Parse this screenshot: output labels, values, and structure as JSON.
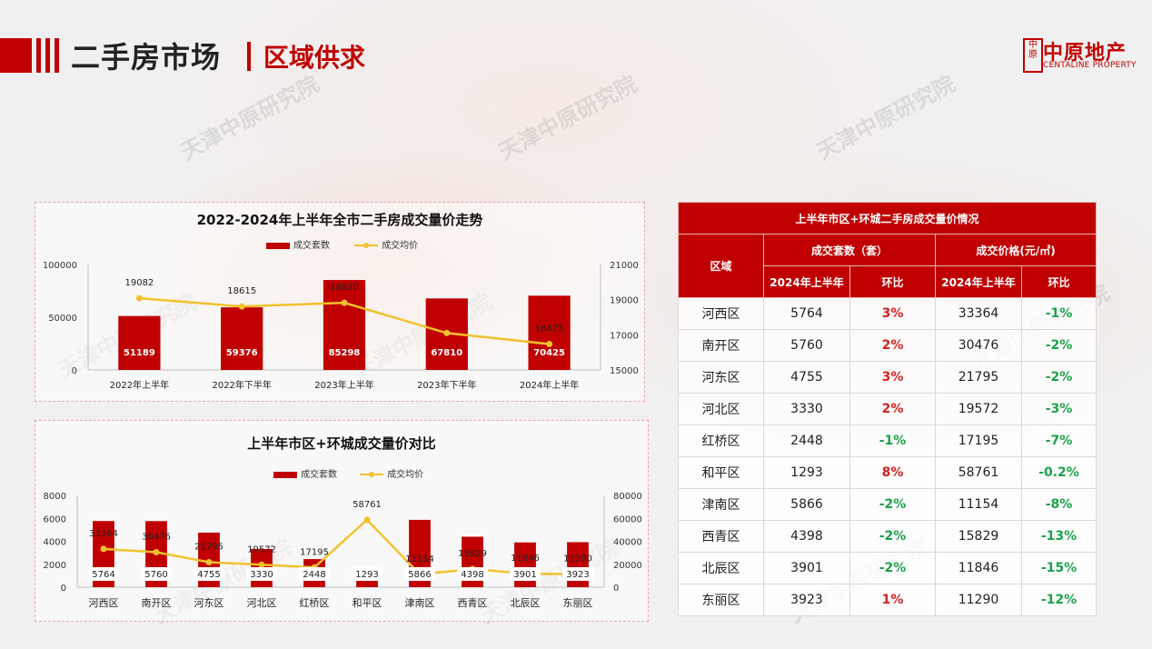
{
  "header": {
    "title": "二手房市场",
    "subtitle": "区域供求"
  },
  "logo": {
    "mark": "中原",
    "name_cn": "中原地产",
    "name_en": "CENTALINE PROPERTY"
  },
  "watermark": "天津中原研究院",
  "colors": {
    "accent": "#c00000",
    "line": "#f2c12e",
    "up": "#d62020",
    "down": "#1aa34a"
  },
  "chart_data": [
    {
      "type": "bar+line",
      "title": "2022-2024年上半年全市二手房成交量价走势",
      "legend": [
        "成交套数",
        "成交均价"
      ],
      "categories": [
        "2022年上半年",
        "2022年下半年",
        "2023年上半年",
        "2023年下半年",
        "2024年上半年"
      ],
      "series": [
        {
          "name": "成交套数",
          "type": "bar",
          "axis": "left",
          "values": [
            51189,
            59376,
            85298,
            67810,
            70425
          ]
        },
        {
          "name": "成交均价",
          "type": "line",
          "axis": "right",
          "values": [
            19082,
            18615,
            18820,
            17100,
            16475
          ],
          "labels": [
            "19082",
            "18615",
            "18820",
            "",
            "16475"
          ]
        }
      ],
      "ylim_left": [
        0,
        100000
      ],
      "yticks_left": [
        "0",
        "50000",
        "100000"
      ],
      "ylim_right": [
        15000,
        21000
      ],
      "yticks_right": [
        "15000",
        "17000",
        "19000",
        "21000"
      ]
    },
    {
      "type": "bar+line",
      "title": "上半年市区+环城成交量价对比",
      "legend": [
        "成交套数",
        "成交均价"
      ],
      "categories": [
        "河西区",
        "南开区",
        "河东区",
        "河北区",
        "红桥区",
        "和平区",
        "津南区",
        "西青区",
        "北辰区",
        "东丽区"
      ],
      "series": [
        {
          "name": "成交套数",
          "type": "bar",
          "axis": "left",
          "values": [
            5764,
            5760,
            4755,
            3330,
            2448,
            1293,
            5866,
            4398,
            3901,
            3923
          ]
        },
        {
          "name": "成交均价",
          "type": "line",
          "axis": "right",
          "values": [
            33364,
            30476,
            21795,
            19572,
            17195,
            58761,
            11154,
            15829,
            11846,
            11290
          ],
          "labels": [
            "33364",
            "30476",
            "21795",
            "19572",
            "17195",
            "58761",
            "11154",
            "15829",
            "11846",
            "11290"
          ]
        }
      ],
      "ylim_left": [
        0,
        8000
      ],
      "yticks_left": [
        "0",
        "2000",
        "4000",
        "6000",
        "8000"
      ],
      "ylim_right": [
        0,
        80000
      ],
      "yticks_right": [
        "0",
        "20000",
        "40000",
        "60000",
        "80000"
      ]
    }
  ],
  "table": {
    "title": "上半年市区+环城二手房成交量价情况",
    "col_region": "区域",
    "group_volume": "成交套数（套）",
    "group_price": "成交价格(元/㎡)",
    "sub_period": "2024年上半年",
    "sub_change": "环比",
    "rows": [
      {
        "region": "河西区",
        "volume": "5764",
        "vol_change": "3%",
        "price": "33364",
        "price_change": "-1%"
      },
      {
        "region": "南开区",
        "volume": "5760",
        "vol_change": "2%",
        "price": "30476",
        "price_change": "-2%"
      },
      {
        "region": "河东区",
        "volume": "4755",
        "vol_change": "3%",
        "price": "21795",
        "price_change": "-2%"
      },
      {
        "region": "河北区",
        "volume": "3330",
        "vol_change": "2%",
        "price": "19572",
        "price_change": "-3%"
      },
      {
        "region": "红桥区",
        "volume": "2448",
        "vol_change": "-1%",
        "price": "17195",
        "price_change": "-7%"
      },
      {
        "region": "和平区",
        "volume": "1293",
        "vol_change": "8%",
        "price": "58761",
        "price_change": "-0.2%"
      },
      {
        "region": "津南区",
        "volume": "5866",
        "vol_change": "-2%",
        "price": "11154",
        "price_change": "-8%"
      },
      {
        "region": "西青区",
        "volume": "4398",
        "vol_change": "-2%",
        "price": "15829",
        "price_change": "-13%"
      },
      {
        "region": "北辰区",
        "volume": "3901",
        "vol_change": "-2%",
        "price": "11846",
        "price_change": "-15%"
      },
      {
        "region": "东丽区",
        "volume": "3923",
        "vol_change": "1%",
        "price": "11290",
        "price_change": "-12%"
      }
    ]
  }
}
